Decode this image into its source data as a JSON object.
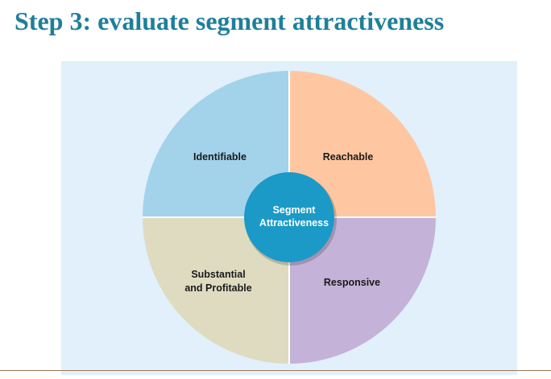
{
  "slide": {
    "title": "Step 3: evaluate segment attractiveness"
  },
  "diagram": {
    "center": {
      "line1": "Segment",
      "line2": "Attractiveness",
      "color": "#1b9ac8"
    },
    "quadrants": {
      "top_left": {
        "line1": "Identifiable",
        "line2": "",
        "color": "#a3d3eb"
      },
      "top_right": {
        "line1": "Reachable",
        "line2": "",
        "color": "#fec7a2"
      },
      "bottom_left": {
        "line1": "Substantial",
        "line2": "and Profitable",
        "color": "#dedbc1"
      },
      "bottom_right": {
        "line1": "Responsive",
        "line2": "",
        "color": "#c4b2d8"
      }
    }
  }
}
